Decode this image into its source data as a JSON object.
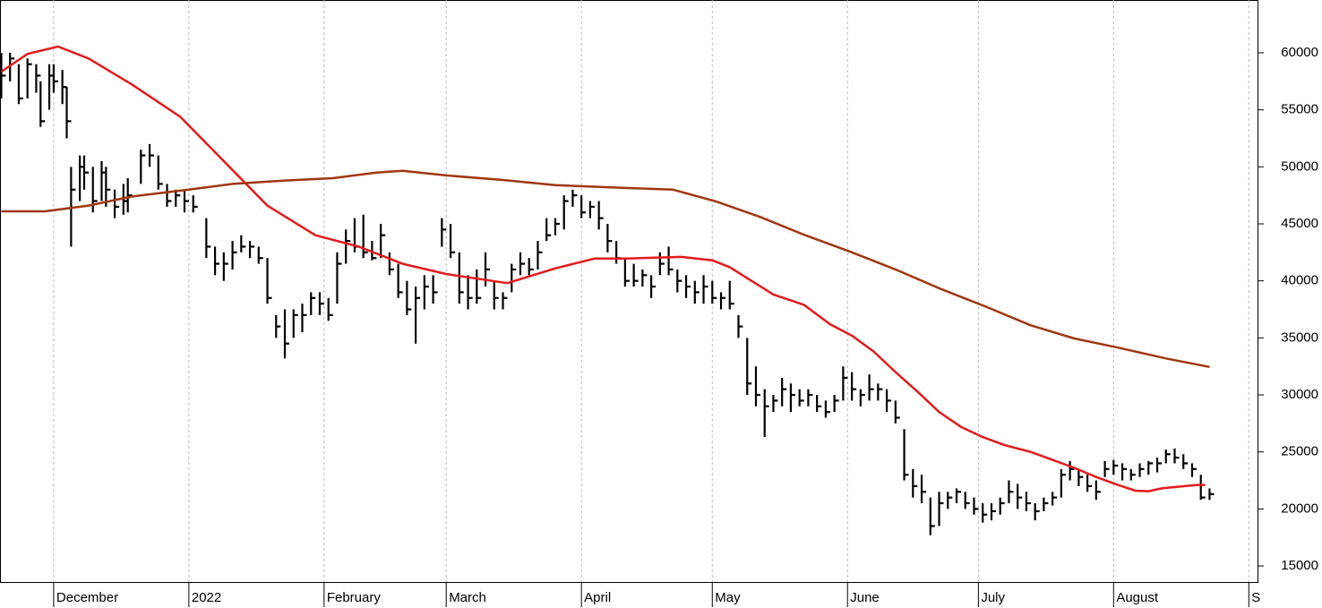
{
  "chart_data": {
    "type": "ohlc",
    "xlim": [
      -12.3,
      276.2
    ],
    "ylim": [
      13590,
      64630
    ],
    "xticks": [
      {
        "value": 0,
        "label": "December"
      },
      {
        "value": 31,
        "label": "2022"
      },
      {
        "value": 62,
        "label": "February"
      },
      {
        "value": 90,
        "label": "March"
      },
      {
        "value": 121,
        "label": "April"
      },
      {
        "value": 151,
        "label": "May"
      },
      {
        "value": 182,
        "label": "June"
      },
      {
        "value": 212,
        "label": "July"
      },
      {
        "value": 243,
        "label": "August"
      },
      {
        "value": 274,
        "label": "S"
      }
    ],
    "yticks": [
      15000,
      20000,
      25000,
      30000,
      35000,
      40000,
      45000,
      50000,
      55000,
      60000
    ],
    "grid": true,
    "bar_color": "#000000",
    "x": [
      -12,
      -10,
      -8,
      -6,
      -4,
      -3,
      -1,
      0,
      2,
      3,
      4,
      6,
      7,
      9,
      11,
      12,
      14,
      16,
      17,
      20,
      22,
      24,
      26,
      28,
      30,
      32,
      35,
      37,
      39,
      41,
      43,
      45,
      47,
      49,
      51,
      53,
      55,
      57,
      59,
      61,
      63,
      65,
      67,
      69,
      71,
      73,
      75,
      77,
      79,
      81,
      83,
      85,
      87,
      89,
      91,
      93,
      95,
      97,
      99,
      101,
      103,
      105,
      107,
      109,
      111,
      113,
      115,
      117,
      119,
      121,
      123,
      125,
      127,
      129,
      131,
      133,
      135,
      137,
      139,
      141,
      143,
      145,
      147,
      149,
      151,
      153,
      155,
      157,
      159,
      161,
      163,
      165,
      167,
      169,
      171,
      173,
      175,
      177,
      179,
      181,
      183,
      185,
      187,
      189,
      191,
      193,
      195,
      197,
      199,
      201,
      203,
      205,
      207,
      209,
      211,
      213,
      215,
      217,
      219,
      221,
      223,
      225,
      227,
      229,
      231,
      233,
      235,
      237,
      239,
      241,
      243,
      245,
      247,
      249,
      251,
      253,
      255,
      257,
      259,
      261,
      263,
      265
    ],
    "high": [
      60000,
      60000,
      59000,
      59500,
      59000,
      57500,
      59000,
      59000,
      58500,
      57000,
      50000,
      51000,
      51000,
      50000,
      50500,
      50000,
      48000,
      48500,
      49000,
      51500,
      52000,
      51000,
      48500,
      48000,
      48000,
      47500,
      45500,
      43000,
      42500,
      43500,
      44000,
      43500,
      43000,
      42000,
      37000,
      37500,
      37500,
      38000,
      39000,
      39000,
      38500,
      42500,
      44500,
      45500,
      45800,
      43500,
      45000,
      42500,
      41500,
      40000,
      39500,
      40500,
      40500,
      45500,
      45000,
      42500,
      40500,
      41000,
      42500,
      40000,
      39000,
      41500,
      42500,
      42000,
      43500,
      45500,
      45500,
      47500,
      48000,
      47500,
      47000,
      47000,
      45000,
      43500,
      42000,
      41500,
      41000,
      40500,
      42500,
      43000,
      41000,
      40500,
      40000,
      40500,
      40000,
      39000,
      40000,
      37000,
      35000,
      32500,
      30500,
      30000,
      31500,
      31000,
      30500,
      30500,
      30000,
      29500,
      30000,
      32500,
      32000,
      30500,
      31800,
      31000,
      30500,
      29500,
      27000,
      23500,
      23000,
      21000,
      21500,
      21500,
      21800,
      21500,
      21000,
      20500,
      20500,
      21000,
      22500,
      22200,
      21500,
      20500,
      21000,
      21500,
      23500,
      24200,
      23500,
      23000,
      22500,
      24200,
      24300,
      24000,
      23500,
      24000,
      24200,
      24500,
      25200,
      25300,
      24800,
      24000,
      23000,
      21800
    ],
    "low": [
      56000,
      57500,
      55500,
      56000,
      56500,
      53500,
      55000,
      56500,
      55500,
      52500,
      43000,
      47000,
      48000,
      46000,
      47000,
      46500,
      45500,
      45800,
      46000,
      48500,
      50000,
      48000,
      46500,
      46500,
      46000,
      46000,
      42000,
      40500,
      40000,
      41000,
      42500,
      42000,
      41500,
      38000,
      35000,
      33200,
      35000,
      35500,
      37000,
      37000,
      36500,
      38000,
      41500,
      42500,
      42000,
      41800,
      42000,
      40500,
      38500,
      37000,
      34500,
      37500,
      38000,
      43000,
      42000,
      38000,
      37500,
      38000,
      39500,
      37500,
      37500,
      39000,
      40500,
      40500,
      41000,
      43500,
      44000,
      44500,
      46500,
      45500,
      45500,
      44500,
      42500,
      41500,
      39500,
      39500,
      39500,
      38500,
      40500,
      40500,
      39000,
      38500,
      38000,
      38000,
      38000,
      37500,
      37500,
      35000,
      30000,
      29000,
      26300,
      28500,
      29000,
      28500,
      29000,
      29000,
      28500,
      28000,
      28500,
      29500,
      29500,
      29000,
      29500,
      29500,
      28500,
      27500,
      22500,
      21000,
      20500,
      17700,
      18500,
      20000,
      20500,
      20000,
      19500,
      18800,
      19000,
      19500,
      20500,
      20000,
      19800,
      19000,
      19800,
      20300,
      21000,
      22500,
      22000,
      21500,
      20800,
      22800,
      23000,
      22500,
      22500,
      22800,
      23000,
      23200,
      24000,
      24000,
      23500,
      22800,
      20800,
      20800
    ],
    "close": [
      58000,
      59500,
      56000,
      59000,
      58000,
      54000,
      58000,
      57500,
      57000,
      54000,
      48000,
      50000,
      49500,
      47000,
      49500,
      48000,
      46500,
      47000,
      47500,
      51000,
      51000,
      48500,
      47000,
      47500,
      47000,
      46500,
      43000,
      41500,
      41500,
      42500,
      43000,
      43000,
      42000,
      38500,
      36000,
      34500,
      37000,
      37000,
      38500,
      38000,
      37000,
      41500,
      43500,
      43000,
      42500,
      42000,
      44000,
      41000,
      39000,
      37500,
      38500,
      39500,
      39000,
      44500,
      42500,
      39000,
      38500,
      38500,
      41000,
      38500,
      38500,
      41000,
      41500,
      41000,
      42500,
      44000,
      45000,
      47000,
      47500,
      46000,
      46500,
      45500,
      43500,
      42000,
      40000,
      40000,
      40500,
      39500,
      41500,
      41000,
      40000,
      39500,
      39000,
      39500,
      38500,
      38500,
      38000,
      36000,
      31000,
      30000,
      29000,
      29500,
      30500,
      30000,
      29500,
      30000,
      29000,
      28500,
      29500,
      31500,
      30500,
      30000,
      30500,
      30500,
      29500,
      28000,
      23000,
      22000,
      21500,
      18500,
      20500,
      21000,
      21500,
      20500,
      20000,
      19500,
      19800,
      20500,
      21500,
      21000,
      20500,
      19800,
      20500,
      21000,
      23000,
      23500,
      22800,
      22000,
      21500,
      23500,
      23800,
      23500,
      23000,
      23500,
      24000,
      24000,
      24800,
      24500,
      24000,
      23500,
      21000,
      21300
    ],
    "series": [
      {
        "color": "#e41a1c",
        "x": [
          -12,
          -6,
          1,
          8,
          18,
          29,
          39,
          49,
          60,
          70,
          80,
          90,
          104,
          115,
          124,
          131,
          144,
          151,
          155,
          160,
          165,
          172,
          178,
          183,
          188,
          193,
          198,
          203,
          208,
          213,
          218,
          224,
          229,
          234,
          239,
          244,
          248,
          251,
          254,
          258,
          262,
          264
        ],
        "values": [
          58350,
          59900,
          60550,
          59500,
          57200,
          54400,
          50500,
          46600,
          44000,
          43000,
          41500,
          40600,
          39800,
          41100,
          41950,
          41950,
          42100,
          41800,
          41200,
          40000,
          38800,
          37900,
          36200,
          35200,
          33800,
          32000,
          30300,
          28500,
          27200,
          26300,
          25600,
          25000,
          24300,
          23600,
          22800,
          22100,
          21600,
          21550,
          21800,
          21950,
          22100,
          22100
        ]
      },
      {
        "color": "#a0360e",
        "x": [
          -12,
          -2,
          8,
          18,
          31,
          41,
          53,
          64,
          74,
          80,
          90,
          103,
          115,
          131,
          142,
          152,
          162,
          172,
          183,
          193,
          203,
          214,
          224,
          234,
          244,
          255,
          265
        ],
        "values": [
          46100,
          46100,
          46600,
          47400,
          48000,
          48500,
          48800,
          49000,
          49500,
          49650,
          49250,
          48850,
          48400,
          48150,
          48000,
          46950,
          45600,
          44050,
          42500,
          41000,
          39350,
          37700,
          36100,
          34950,
          34150,
          33200,
          32450
        ]
      }
    ]
  }
}
